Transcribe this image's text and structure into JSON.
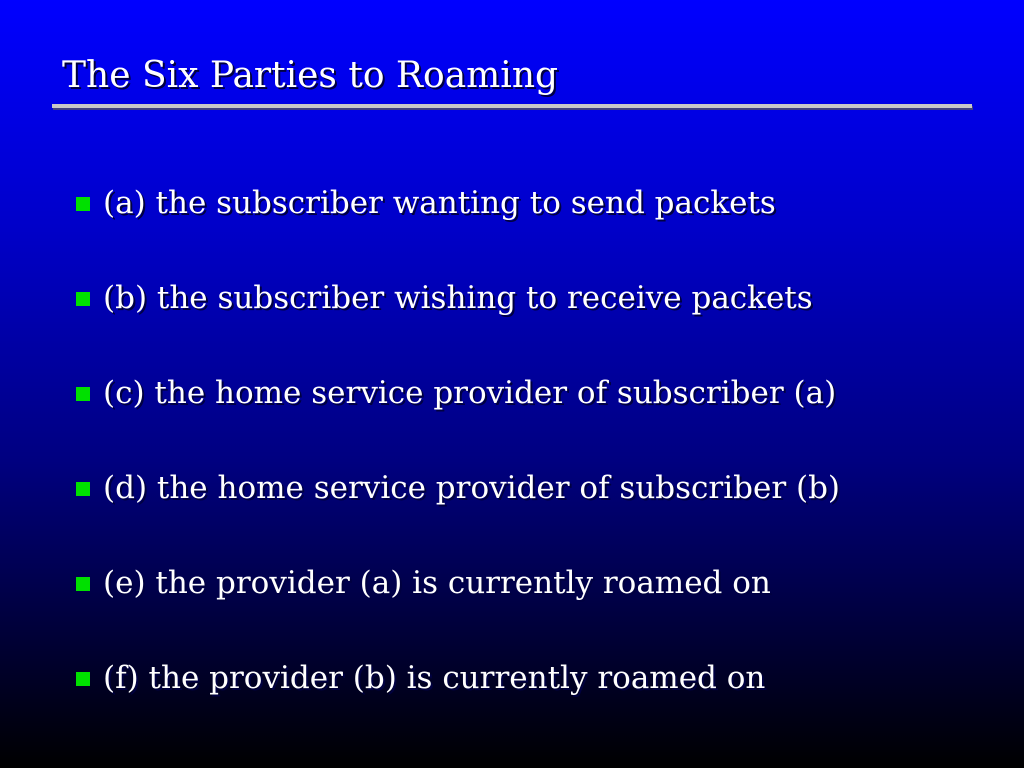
{
  "slide": {
    "title": "The Six Parties to Roaming",
    "bullets": [
      "(a) the subscriber wanting to send packets",
      "(b) the subscriber wishing to receive packets",
      "(c) the home service provider of subscriber (a)",
      "(d) the home service provider of subscriber (b)",
      "(e) the provider (a) is currently roamed on",
      "(f) the provider (b) is currently roamed on"
    ]
  },
  "colors": {
    "background_top": "#0000ff",
    "background_bottom": "#000000",
    "bullet_marker": "#00e000",
    "text": "#ffffff",
    "rule": "#c8c8c8"
  }
}
